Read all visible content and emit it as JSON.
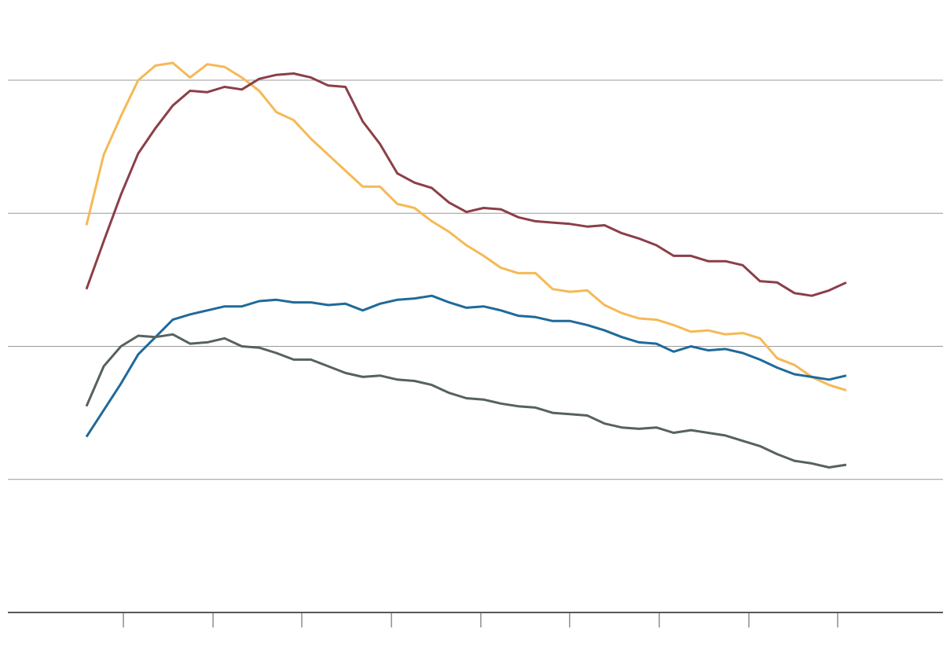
{
  "chart_data": {
    "type": "line",
    "x": [
      0,
      1,
      2,
      3,
      4,
      5,
      6,
      7,
      8,
      9,
      10,
      11,
      12,
      13,
      14,
      15,
      16,
      17,
      18,
      19,
      20,
      21,
      22,
      23,
      24,
      25,
      26,
      27,
      28,
      29,
      30,
      31,
      32,
      33,
      34,
      35,
      36,
      37,
      38,
      39,
      40,
      41,
      42,
      43,
      44
    ],
    "xlim": [
      -4.55,
      49.6
    ],
    "xticks": [
      2.14,
      7.33,
      12.47,
      17.66,
      22.84,
      27.98,
      33.17,
      38.36,
      43.5
    ],
    "ylim": [
      0,
      4.6
    ],
    "yticks": [
      0,
      1,
      2,
      3,
      4
    ],
    "grid": true,
    "series": [
      {
        "color": "#f5b955",
        "values": [
          2.91,
          3.44,
          3.73,
          4.0,
          4.11,
          4.13,
          4.02,
          4.12,
          4.1,
          4.02,
          3.92,
          3.76,
          3.7,
          3.56,
          3.44,
          3.32,
          3.2,
          3.2,
          3.07,
          3.04,
          2.94,
          2.86,
          2.76,
          2.68,
          2.59,
          2.55,
          2.55,
          2.43,
          2.41,
          2.42,
          2.31,
          2.25,
          2.21,
          2.2,
          2.16,
          2.11,
          2.12,
          2.09,
          2.1,
          2.06,
          1.91,
          1.86,
          1.77,
          1.71,
          1.67
        ]
      },
      {
        "color": "#8b3f47",
        "values": [
          2.43,
          2.79,
          3.14,
          3.45,
          3.64,
          3.81,
          3.92,
          3.91,
          3.95,
          3.93,
          4.01,
          4.04,
          4.05,
          4.02,
          3.96,
          3.95,
          3.69,
          3.52,
          3.3,
          3.23,
          3.19,
          3.08,
          3.01,
          3.04,
          3.03,
          2.97,
          2.94,
          2.93,
          2.92,
          2.9,
          2.91,
          2.85,
          2.81,
          2.76,
          2.68,
          2.68,
          2.64,
          2.64,
          2.61,
          2.49,
          2.48,
          2.4,
          2.38,
          2.42,
          2.48
        ]
      },
      {
        "color": "#1f6a9a",
        "values": [
          1.32,
          1.52,
          1.72,
          1.94,
          2.07,
          2.2,
          2.24,
          2.27,
          2.3,
          2.3,
          2.34,
          2.35,
          2.33,
          2.33,
          2.31,
          2.32,
          2.27,
          2.32,
          2.35,
          2.36,
          2.38,
          2.33,
          2.29,
          2.3,
          2.27,
          2.23,
          2.22,
          2.19,
          2.19,
          2.16,
          2.12,
          2.07,
          2.03,
          2.02,
          1.96,
          2.0,
          1.97,
          1.98,
          1.95,
          1.9,
          1.84,
          1.79,
          1.77,
          1.75,
          1.78
        ]
      },
      {
        "color": "#56625e",
        "values": [
          1.55,
          1.85,
          2.0,
          2.08,
          2.07,
          2.09,
          2.02,
          2.03,
          2.06,
          2.0,
          1.99,
          1.95,
          1.9,
          1.9,
          1.85,
          1.8,
          1.77,
          1.78,
          1.75,
          1.74,
          1.71,
          1.65,
          1.61,
          1.6,
          1.57,
          1.55,
          1.54,
          1.5,
          1.49,
          1.48,
          1.42,
          1.39,
          1.38,
          1.39,
          1.35,
          1.37,
          1.35,
          1.33,
          1.29,
          1.25,
          1.19,
          1.14,
          1.12,
          1.09,
          1.11
        ]
      }
    ]
  }
}
